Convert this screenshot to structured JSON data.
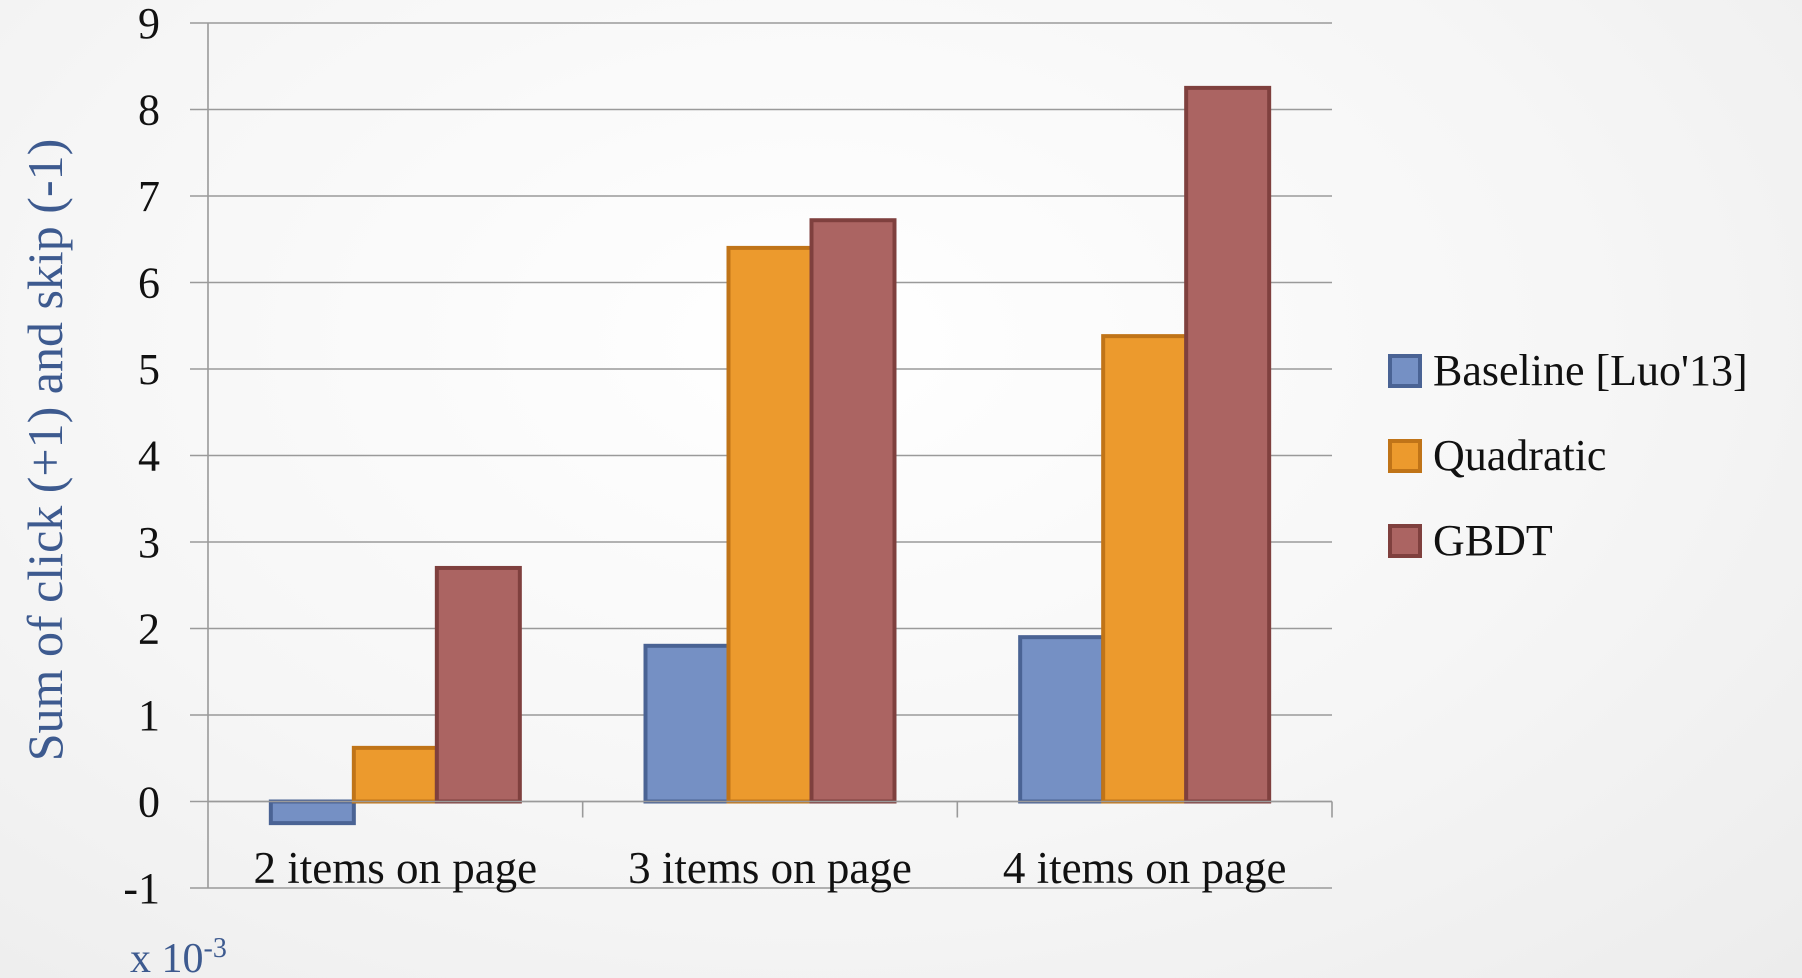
{
  "chart_data": {
    "type": "bar",
    "categories": [
      "2 items on page",
      "3 items on page",
      "4 items on page"
    ],
    "series": [
      {
        "name": "Baseline [Luo'13]",
        "values": [
          -0.25,
          1.8,
          1.9
        ],
        "color": "#7590c4",
        "stroke": "#4a6394"
      },
      {
        "name": "Quadratic",
        "values": [
          0.62,
          6.4,
          5.38
        ],
        "color": "#ec9a2d",
        "stroke": "#c07418"
      },
      {
        "name": "GBDT",
        "values": [
          2.7,
          6.72,
          8.25
        ],
        "color": "#ab6462",
        "stroke": "#7f403e"
      }
    ],
    "title": "",
    "xlabel": "",
    "ylabel": "Sum of click (+1) and skip (-1)",
    "ylim": [
      -1,
      9
    ],
    "yticks": [
      -1,
      0,
      1,
      2,
      3,
      4,
      5,
      6,
      7,
      8,
      9
    ],
    "scale_note_base": "x 10",
    "scale_note_exponent": "-3",
    "grid": true,
    "legend_position": "right"
  }
}
